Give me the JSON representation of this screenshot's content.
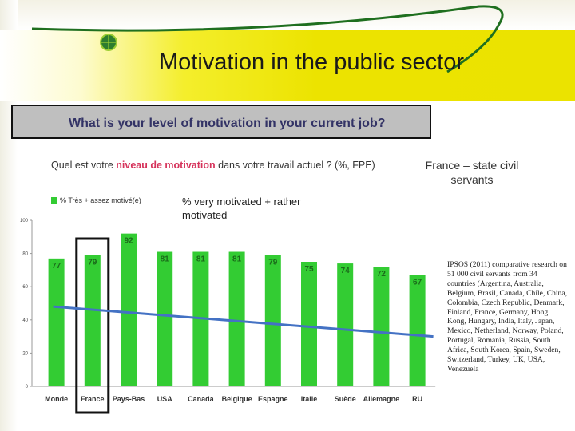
{
  "slide": {
    "title": "Motivation in the public sector",
    "question": "What is your level of motivation in your current job?",
    "france_label": "France – state civil servants",
    "overlay_label": "% very motivated + rather motivated",
    "note": "IPSOS (2011) comparative research on 51 000 civil servants from 34 countries (Argentina, Australia, Belgium, Brasil, Canada, Chile, China, Colombia, Czech Republic, Denmark, Finland, France, Germany, Hong Kong, Hungary, India, Italy, Japan, Mexico, Netherland, Norway, Poland, Portugal, Romania, Russia, South Africa, South Korea, Spain, Sweden, Switzerland, Turkey, UK, USA, Venezuela"
  },
  "chart_data": {
    "type": "bar",
    "title_prefix": "Quel est votre ",
    "title_highlight": "niveau de motivation",
    "title_suffix": " dans votre travail actuel ? (%, FPE)",
    "legend": [
      "% Très + assez motivé(e)"
    ],
    "categories": [
      "Monde",
      "France",
      "Pays-Bas",
      "USA",
      "Canada",
      "Belgique",
      "Espagne",
      "Italie",
      "Suède",
      "Allemagne",
      "RU"
    ],
    "series": [
      {
        "name": "% Très + assez motivé(e)",
        "values": [
          77,
          79,
          92,
          81,
          81,
          81,
          79,
          75,
          74,
          72,
          67
        ]
      }
    ],
    "ylim": [
      0,
      100
    ],
    "yticks": [
      0,
      20,
      40,
      60,
      80,
      100
    ],
    "highlighted_category": "France",
    "trend_line": {
      "from_category": "Monde",
      "to_category": "RU",
      "start": 48,
      "end": 30
    },
    "colors": {
      "bar": "#33cc33",
      "bar_label": "#1a6b1a",
      "trend": "#4472c4",
      "highlight_box": "#111111"
    }
  }
}
